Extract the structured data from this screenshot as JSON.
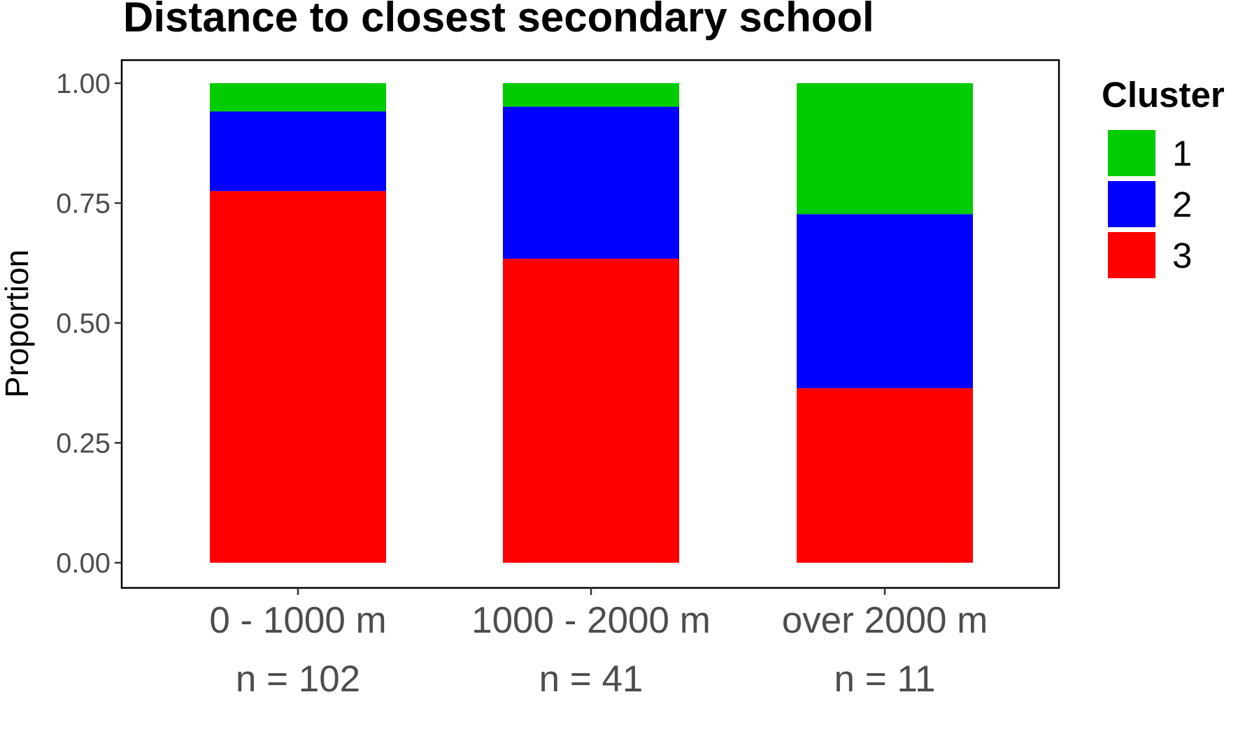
{
  "chart_data": {
    "type": "bar",
    "stacked": true,
    "title": "Distance to closest secondary school",
    "xlabel": "",
    "ylabel": "Proportion",
    "ylim": [
      0,
      1
    ],
    "yticks": [
      "0.00",
      "0.25",
      "0.50",
      "0.75",
      "1.00"
    ],
    "categories": [
      "0 - 1000 m",
      "1000 - 2000 m",
      "over 2000 m"
    ],
    "category_counts": [
      "n = 102",
      "n = 41",
      "n = 11"
    ],
    "series": [
      {
        "name": "3",
        "color": "#ff0000",
        "values": [
          0.775,
          0.634,
          0.364
        ]
      },
      {
        "name": "2",
        "color": "#0000ff",
        "values": [
          0.166,
          0.317,
          0.363
        ]
      },
      {
        "name": "1",
        "color": "#00cc00",
        "values": [
          0.059,
          0.049,
          0.273
        ]
      }
    ],
    "legend": {
      "title": "Cluster",
      "position": "right",
      "order": [
        "1",
        "2",
        "3"
      ]
    },
    "grid": false
  }
}
